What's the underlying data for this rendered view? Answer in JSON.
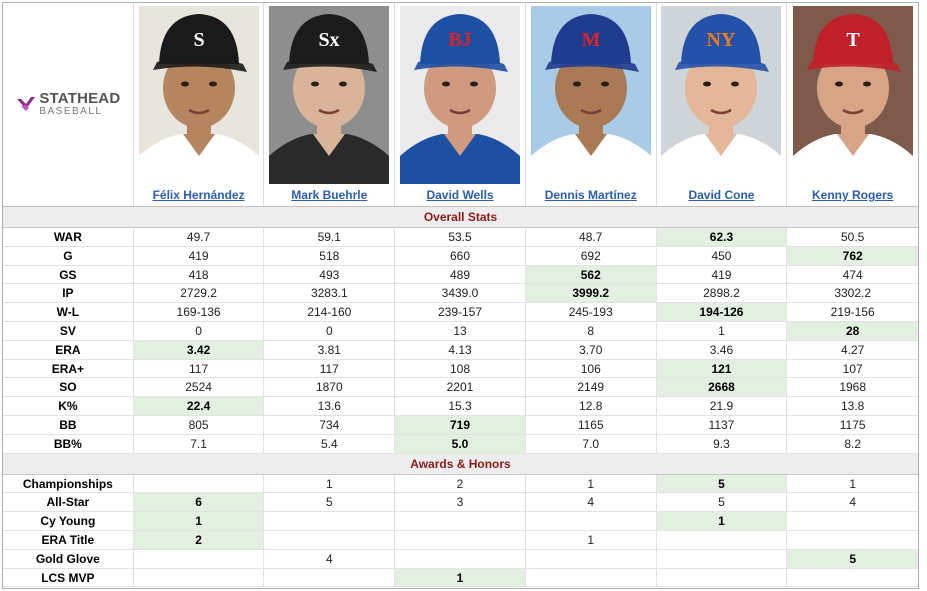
{
  "logo": {
    "title": "STATHEAD",
    "subtitle": "BASEBALL",
    "accent": "#8e2a8e"
  },
  "players": [
    {
      "name": "Félix Hernández",
      "cap_color": "#1a1a1a",
      "logo_char": "S",
      "logo_color": "#ffffff",
      "bg": "#e8e4de",
      "skin": "#b58560",
      "jersey": "#ffffff"
    },
    {
      "name": "Mark Buehrle",
      "cap_color": "#1c1c1c",
      "logo_char": "Sx",
      "logo_color": "#ffffff",
      "bg": "#8e8e8e",
      "skin": "#d9b49a",
      "jersey": "#2a2a2a"
    },
    {
      "name": "David Wells",
      "cap_color": "#1d4fa3",
      "logo_char": "BJ",
      "logo_color": "#e02020",
      "bg": "#eaeaea",
      "skin": "#cf9a7f",
      "jersey": "#1d4fa3"
    },
    {
      "name": "Dennis Martínez",
      "cap_color": "#1f3c8f",
      "logo_char": "M",
      "logo_color": "#d9252a",
      "bg": "#aacbe6",
      "skin": "#a97a55",
      "jersey": "#ffffff"
    },
    {
      "name": "David Cone",
      "cap_color": "#2452a8",
      "logo_char": "NY",
      "logo_color": "#f07a1a",
      "bg": "#cfd4d8",
      "skin": "#e4b79a",
      "jersey": "#ffffff"
    },
    {
      "name": "Kenny Rogers",
      "cap_color": "#c0202a",
      "logo_char": "T",
      "logo_color": "#ffffff",
      "bg": "#7d5a4a",
      "skin": "#d8a487",
      "jersey": "#ffffff"
    }
  ],
  "sections": [
    {
      "title": "Overall Stats",
      "rows": [
        {
          "label": "WAR",
          "values": [
            "49.7",
            "59.1",
            "53.5",
            "48.7",
            "62.3",
            "50.5"
          ],
          "best": 4
        },
        {
          "label": "G",
          "values": [
            "419",
            "518",
            "660",
            "692",
            "450",
            "762"
          ],
          "best": 5
        },
        {
          "label": "GS",
          "values": [
            "418",
            "493",
            "489",
            "562",
            "419",
            "474"
          ],
          "best": 3
        },
        {
          "label": "IP",
          "values": [
            "2729.2",
            "3283.1",
            "3439.0",
            "3999.2",
            "2898.2",
            "3302.2"
          ],
          "best": 3
        },
        {
          "label": "W-L",
          "values": [
            "169-136",
            "214-160",
            "239-157",
            "245-193",
            "194-126",
            "219-156"
          ],
          "best": 4
        },
        {
          "label": "SV",
          "values": [
            "0",
            "0",
            "13",
            "8",
            "1",
            "28"
          ],
          "best": 5
        },
        {
          "label": "ERA",
          "values": [
            "3.42",
            "3.81",
            "4.13",
            "3.70",
            "3.46",
            "4.27"
          ],
          "best": 0
        },
        {
          "label": "ERA+",
          "values": [
            "117",
            "117",
            "108",
            "106",
            "121",
            "107"
          ],
          "best": 4
        },
        {
          "label": "SO",
          "values": [
            "2524",
            "1870",
            "2201",
            "2149",
            "2668",
            "1968"
          ],
          "best": 4
        },
        {
          "label": "K%",
          "values": [
            "22.4",
            "13.6",
            "15.3",
            "12.8",
            "21.9",
            "13.8"
          ],
          "best": 0
        },
        {
          "label": "BB",
          "values": [
            "805",
            "734",
            "719",
            "1165",
            "1137",
            "1175"
          ],
          "best": 2
        },
        {
          "label": "BB%",
          "values": [
            "7.1",
            "5.4",
            "5.0",
            "7.0",
            "9.3",
            "8.2"
          ],
          "best": 2
        }
      ]
    },
    {
      "title": "Awards & Honors",
      "rows": [
        {
          "label": "Championships",
          "values": [
            "",
            "1",
            "2",
            "1",
            "5",
            "1"
          ],
          "best": 4
        },
        {
          "label": "All-Star",
          "values": [
            "6",
            "5",
            "3",
            "4",
            "5",
            "4"
          ],
          "best": 0
        },
        {
          "label": "Cy Young",
          "values": [
            "1",
            "",
            "",
            "",
            "1",
            ""
          ],
          "best": [
            0,
            4
          ]
        },
        {
          "label": "ERA Title",
          "values": [
            "2",
            "",
            "",
            "1",
            "",
            ""
          ],
          "best": 0
        },
        {
          "label": "Gold Glove",
          "values": [
            "",
            "4",
            "",
            "",
            "",
            "5"
          ],
          "best": 5
        },
        {
          "label": "LCS MVP",
          "values": [
            "",
            "",
            "1",
            "",
            "",
            ""
          ],
          "best": 2
        }
      ]
    }
  ]
}
